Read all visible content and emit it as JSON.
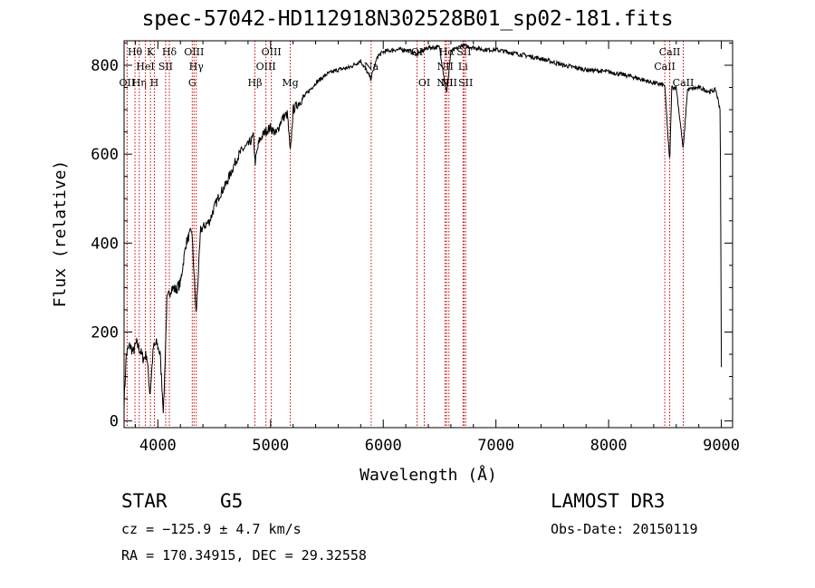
{
  "chart_data": {
    "type": "line",
    "title": "spec-57042-HD112918N302528B01_sp02-181.fits",
    "xlabel": "Wavelength (Å)",
    "ylabel": "Flux (relative)",
    "xlim": [
      3700,
      9100
    ],
    "ylim": [
      -15,
      855
    ],
    "x_ticks": [
      4000,
      5000,
      6000,
      7000,
      8000,
      9000
    ],
    "y_ticks": [
      0,
      200,
      400,
      600,
      800
    ],
    "series": [
      {
        "name": "flux",
        "x": [
          3700,
          3720,
          3750,
          3780,
          3810,
          3840,
          3870,
          3900,
          3930,
          3960,
          3990,
          4020,
          4050,
          4080,
          4120,
          4160,
          4200,
          4250,
          4300,
          4340,
          4380,
          4420,
          4460,
          4500,
          4550,
          4600,
          4650,
          4700,
          4750,
          4800,
          4850,
          4861,
          4900,
          4950,
          5000,
          5050,
          5100,
          5150,
          5175,
          5200,
          5300,
          5400,
          5500,
          5600,
          5700,
          5800,
          5890,
          5950,
          6000,
          6100,
          6200,
          6300,
          6400,
          6500,
          6563,
          6600,
          6700,
          6800,
          6900,
          7000,
          7200,
          7400,
          7600,
          7800,
          8000,
          8200,
          8400,
          8498,
          8542,
          8560,
          8600,
          8662,
          8700,
          8800,
          8900,
          8950,
          8990,
          9000
        ],
        "values": [
          40,
          150,
          170,
          155,
          175,
          160,
          140,
          150,
          60,
          165,
          175,
          150,
          20,
          270,
          300,
          295,
          310,
          400,
          430,
          240,
          430,
          440,
          450,
          480,
          510,
          530,
          560,
          590,
          610,
          620,
          640,
          580,
          630,
          650,
          660,
          645,
          680,
          690,
          600,
          700,
          730,
          760,
          780,
          790,
          795,
          810,
          770,
          820,
          830,
          835,
          835,
          825,
          840,
          840,
          735,
          830,
          845,
          840,
          835,
          835,
          825,
          815,
          800,
          790,
          785,
          775,
          760,
          755,
          580,
          750,
          750,
          610,
          745,
          750,
          740,
          745,
          700,
          120
        ]
      }
    ],
    "lines": [
      {
        "label": "Hθ",
        "x": 3797,
        "row": 1
      },
      {
        "label": "OII",
        "x": 3727,
        "row": 3
      },
      {
        "label": "Hη",
        "x": 3835,
        "row": 3
      },
      {
        "label": "HeI",
        "x": 3889,
        "row": 2
      },
      {
        "label": "K",
        "x": 3934,
        "row": 1
      },
      {
        "label": "H",
        "x": 3969,
        "row": 3
      },
      {
        "label": "SII",
        "x": 4069,
        "row": 2
      },
      {
        "label": "Hδ",
        "x": 4102,
        "row": 1
      },
      {
        "label": "G",
        "x": 4305,
        "row": 3
      },
      {
        "label": "OIII",
        "x": 4321,
        "row": 1
      },
      {
        "label": "Hγ",
        "x": 4341,
        "row": 2
      },
      {
        "label": "Hβ",
        "x": 4861,
        "row": 3
      },
      {
        "label": "OIII",
        "x": 4959,
        "row": 2
      },
      {
        "label": "OIII",
        "x": 5007,
        "row": 1
      },
      {
        "label": "Mg",
        "x": 5175,
        "row": 3
      },
      {
        "label": "Na",
        "x": 5893,
        "row": 2
      },
      {
        "label": "OI",
        "x": 6300,
        "row": 1
      },
      {
        "label": "OI",
        "x": 6364,
        "row": 3
      },
      {
        "label": "NII",
        "x": 6548,
        "row": 3
      },
      {
        "label": "NII",
        "x": 6550,
        "row": 2
      },
      {
        "label": "Hα",
        "x": 6563,
        "row": 1
      },
      {
        "label": "NII",
        "x": 6583,
        "row": 3
      },
      {
        "label": "SII",
        "x": 6716,
        "row": 1
      },
      {
        "label": "Li",
        "x": 6708,
        "row": 2
      },
      {
        "label": "SII",
        "x": 6731,
        "row": 3
      },
      {
        "label": "CaII",
        "x": 8498,
        "row": 2
      },
      {
        "label": "CaII",
        "x": 8542,
        "row": 1
      },
      {
        "label": "CaII",
        "x": 8662,
        "row": 3
      }
    ]
  },
  "info": {
    "object_type": "STAR",
    "subclass": "G5",
    "survey": "LAMOST DR3",
    "cz": "cz = −125.9 ± 4.7 km/s",
    "obs_date": "Obs-Date: 20150119",
    "coords": "RA = 170.34915, DEC =  29.32558"
  }
}
